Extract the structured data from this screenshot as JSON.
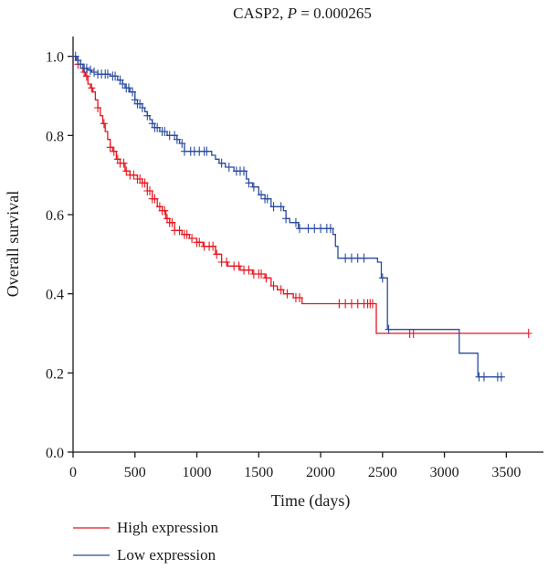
{
  "chart_data": {
    "type": "line",
    "title_name": "CASP2, ",
    "title_p_symbol": "P",
    "title_p_value": " = 0.000265",
    "xlabel": "Time (days)",
    "ylabel": "Overall survival",
    "xlim": [
      0,
      3800
    ],
    "ylim": [
      0,
      1.05
    ],
    "x_ticks": [
      0,
      500,
      1000,
      1500,
      2000,
      2500,
      3000,
      3500
    ],
    "y_ticks": [
      0.0,
      0.2,
      0.4,
      0.6,
      0.8,
      1.0
    ],
    "x_tick_labels": [
      "0",
      "500",
      "1000",
      "1500",
      "2000",
      "2500",
      "3000",
      "3500"
    ],
    "y_tick_labels": [
      "0.0",
      "0.2",
      "0.4",
      "0.6",
      "0.8",
      "1.0"
    ],
    "grid": false,
    "legend_position": "bottom-left",
    "series": [
      {
        "name": "High expression",
        "color": "#e8151f",
        "steps": [
          [
            0,
            1.0
          ],
          [
            20,
            0.99
          ],
          [
            40,
            0.98
          ],
          [
            60,
            0.97
          ],
          [
            80,
            0.96
          ],
          [
            100,
            0.95
          ],
          [
            120,
            0.93
          ],
          [
            140,
            0.92
          ],
          [
            160,
            0.91
          ],
          [
            180,
            0.89
          ],
          [
            200,
            0.87
          ],
          [
            220,
            0.85
          ],
          [
            240,
            0.83
          ],
          [
            260,
            0.81
          ],
          [
            280,
            0.79
          ],
          [
            300,
            0.77
          ],
          [
            320,
            0.76
          ],
          [
            350,
            0.74
          ],
          [
            380,
            0.73
          ],
          [
            420,
            0.71
          ],
          [
            460,
            0.7
          ],
          [
            520,
            0.69
          ],
          [
            560,
            0.68
          ],
          [
            600,
            0.66
          ],
          [
            640,
            0.64
          ],
          [
            680,
            0.62
          ],
          [
            720,
            0.61
          ],
          [
            750,
            0.59
          ],
          [
            780,
            0.58
          ],
          [
            820,
            0.56
          ],
          [
            880,
            0.55
          ],
          [
            940,
            0.54
          ],
          [
            1000,
            0.53
          ],
          [
            1050,
            0.52
          ],
          [
            1150,
            0.5
          ],
          [
            1200,
            0.48
          ],
          [
            1250,
            0.47
          ],
          [
            1350,
            0.46
          ],
          [
            1450,
            0.45
          ],
          [
            1550,
            0.44
          ],
          [
            1600,
            0.42
          ],
          [
            1650,
            0.41
          ],
          [
            1700,
            0.4
          ],
          [
            1780,
            0.39
          ],
          [
            1850,
            0.375
          ],
          [
            2450,
            0.3
          ],
          [
            3680,
            0.3
          ]
        ],
        "censor_times": [
          40,
          90,
          110,
          150,
          200,
          250,
          300,
          330,
          360,
          380,
          410,
          430,
          460,
          490,
          520,
          540,
          560,
          580,
          600,
          620,
          640,
          660,
          700,
          720,
          740,
          760,
          780,
          800,
          820,
          860,
          900,
          920,
          960,
          1000,
          1020,
          1060,
          1100,
          1130,
          1160,
          1200,
          1240,
          1300,
          1340,
          1380,
          1420,
          1460,
          1500,
          1520,
          1560,
          1620,
          1680,
          1730,
          1800,
          1830,
          2150,
          2200,
          2250,
          2300,
          2350,
          2380,
          2400,
          2420,
          2720,
          2750,
          3680
        ]
      },
      {
        "name": "Low expression",
        "color": "#2a4ba0",
        "steps": [
          [
            0,
            1.0
          ],
          [
            30,
            0.99
          ],
          [
            60,
            0.98
          ],
          [
            80,
            0.97
          ],
          [
            120,
            0.965
          ],
          [
            150,
            0.96
          ],
          [
            200,
            0.955
          ],
          [
            300,
            0.95
          ],
          [
            360,
            0.94
          ],
          [
            400,
            0.93
          ],
          [
            420,
            0.92
          ],
          [
            460,
            0.91
          ],
          [
            500,
            0.89
          ],
          [
            520,
            0.88
          ],
          [
            560,
            0.87
          ],
          [
            580,
            0.86
          ],
          [
            600,
            0.85
          ],
          [
            620,
            0.84
          ],
          [
            640,
            0.83
          ],
          [
            660,
            0.82
          ],
          [
            700,
            0.81
          ],
          [
            760,
            0.8
          ],
          [
            840,
            0.79
          ],
          [
            860,
            0.78
          ],
          [
            900,
            0.76
          ],
          [
            1120,
            0.75
          ],
          [
            1150,
            0.74
          ],
          [
            1180,
            0.73
          ],
          [
            1230,
            0.72
          ],
          [
            1300,
            0.71
          ],
          [
            1400,
            0.69
          ],
          [
            1420,
            0.68
          ],
          [
            1450,
            0.67
          ],
          [
            1500,
            0.65
          ],
          [
            1550,
            0.64
          ],
          [
            1600,
            0.62
          ],
          [
            1700,
            0.61
          ],
          [
            1720,
            0.59
          ],
          [
            1750,
            0.58
          ],
          [
            1820,
            0.565
          ],
          [
            2100,
            0.55
          ],
          [
            2120,
            0.52
          ],
          [
            2140,
            0.49
          ],
          [
            2460,
            0.48
          ],
          [
            2490,
            0.44
          ],
          [
            2540,
            0.31
          ],
          [
            3120,
            0.25
          ],
          [
            3270,
            0.19
          ],
          [
            3470,
            0.19
          ]
        ],
        "censor_times": [
          20,
          40,
          60,
          90,
          110,
          140,
          170,
          200,
          230,
          260,
          280,
          320,
          340,
          380,
          400,
          430,
          450,
          480,
          500,
          520,
          540,
          560,
          600,
          640,
          660,
          680,
          720,
          740,
          780,
          820,
          840,
          880,
          900,
          950,
          980,
          1020,
          1060,
          1080,
          1200,
          1260,
          1320,
          1350,
          1380,
          1420,
          1460,
          1520,
          1550,
          1570,
          1620,
          1680,
          1720,
          1800,
          1830,
          1900,
          1950,
          2000,
          2050,
          2080,
          2200,
          2250,
          2300,
          2350,
          2500,
          2550,
          3280,
          3320,
          3430,
          3460
        ]
      }
    ]
  }
}
